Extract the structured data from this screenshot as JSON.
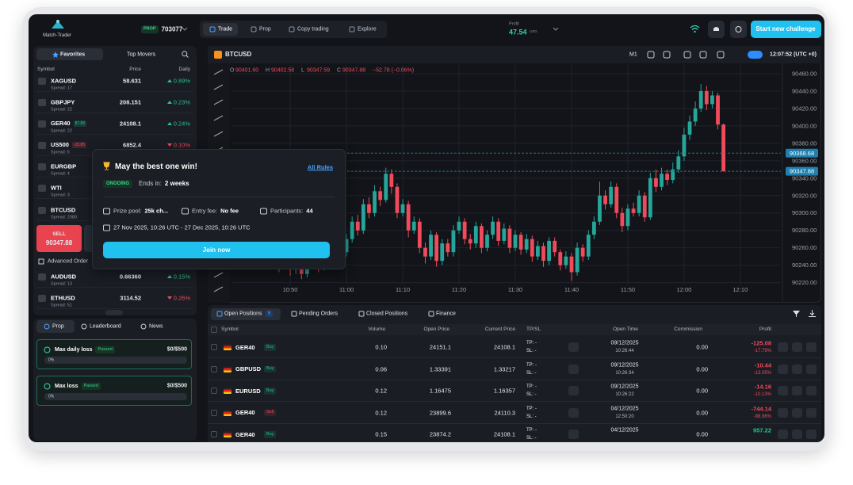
{
  "header": {
    "logo": "Match-Trader",
    "account_badge": "PROP",
    "account_id": "703077",
    "nav": [
      "Trade",
      "Prop",
      "Copy trading",
      "Explore"
    ],
    "profit_label": "Profit",
    "profit_value": "47.54",
    "profit_currency": "USD",
    "cta": "Start new challenge"
  },
  "watchlist": {
    "tabs": [
      "Favorites",
      "Top Movers"
    ],
    "columns": [
      "Symbol",
      "Price",
      "Daily"
    ],
    "rows": [
      {
        "symbol": "XAGUSD",
        "spread": "Spread: 17",
        "price": "58.631",
        "change": "0.89%",
        "trend": "up"
      },
      {
        "symbol": "GBPJPY",
        "spread": "Spread: 22",
        "price": "208.151",
        "change": "0.23%",
        "trend": "up"
      },
      {
        "symbol": "GER40",
        "badge": "87.89",
        "badge_trend": "up",
        "spread": "Spread: 22",
        "price": "24108.1",
        "change": "0.24%",
        "trend": "up"
      },
      {
        "symbol": "US500",
        "badge": "-15.85",
        "badge_trend": "down",
        "spread": "Spread: 6",
        "price": "6852.4",
        "change": "0.10%",
        "trend": "down"
      },
      {
        "symbol": "EURGBP",
        "spread": "Spread: 4"
      },
      {
        "symbol": "WTI",
        "spread": "Spread: 3"
      },
      {
        "symbol": "BTCUSD",
        "spread": "Spread: 2080"
      },
      {
        "symbol": "AUDUSD",
        "spread": "Spread: 13",
        "price": "0.66360",
        "change": "0.15%",
        "trend": "up"
      },
      {
        "symbol": "ETHUSD",
        "spread": "Spread: 51",
        "price": "3114.52",
        "change": "0.26%",
        "trend": "down"
      }
    ],
    "sell": {
      "label": "SELL",
      "price": "90347.88"
    },
    "advanced_order": "Advanced Order"
  },
  "prop_panel": {
    "tabs": [
      "Prop",
      "Leaderboard",
      "News"
    ],
    "cards": [
      {
        "title": "Max daily loss",
        "status": "Passed",
        "amount": "$0/$500",
        "progress": "0%"
      },
      {
        "title": "Max loss",
        "status": "Passed",
        "amount": "$0/$500",
        "progress": "0%"
      }
    ]
  },
  "popup": {
    "title": "May the best one win!",
    "link": "All Rules",
    "status": "ONGOING",
    "ends_label": "Ends in:",
    "ends_value": "2 weeks",
    "prize_label": "Prize pool:",
    "prize_value": "25k ch...",
    "fee_label": "Entry fee:",
    "fee_value": "No fee",
    "participants_label": "Participants:",
    "participants_value": "44",
    "dates": "27 Nov 2025, 10:26 UTC - 27 Dec 2025, 10:26 UTC",
    "button": "Join now"
  },
  "chart_data": {
    "type": "candlestick",
    "symbol": "BTCUSD",
    "timeframe": "M1",
    "clock": "12:07:52 (UTC +0)",
    "ohlc_header": [
      {
        "key": "O",
        "value": "90401.60"
      },
      {
        "key": "H",
        "value": "90402.58"
      },
      {
        "key": "L",
        "value": "90347.59"
      },
      {
        "key": "C",
        "value": "90347.88"
      }
    ],
    "change": "−52.78 (−0.06%)",
    "up_color": "#26a69a",
    "down_color": "#ef4b5b",
    "grid": true,
    "ylim": [
      90206,
      90470
    ],
    "yticks": [
      {
        "value": 90460,
        "label": "90460.00"
      },
      {
        "value": 90440,
        "label": "90440.00"
      },
      {
        "value": 90420,
        "label": "90420.00"
      },
      {
        "value": 90400,
        "label": "90400.00"
      },
      {
        "value": 90380,
        "label": "90380.00"
      },
      {
        "value": 90360,
        "label": "90360.00"
      },
      {
        "value": 90340,
        "label": "90340.00"
      },
      {
        "value": 90320,
        "label": "90320.00"
      },
      {
        "value": 90300,
        "label": "90300.00"
      },
      {
        "value": 90280,
        "label": "90280.00"
      },
      {
        "value": 90260,
        "label": "90260.00"
      },
      {
        "value": 90240,
        "label": "90240.00"
      },
      {
        "value": 90220,
        "label": "90220.00"
      }
    ],
    "xlim": [
      -0.3,
      97.2
    ],
    "xticks": [
      {
        "value": 10,
        "label": "10:50"
      },
      {
        "value": 20,
        "label": "11:00"
      },
      {
        "value": 30,
        "label": "11:10"
      },
      {
        "value": 40,
        "label": "11:20"
      },
      {
        "value": 50,
        "label": "11:30"
      },
      {
        "value": 60,
        "label": "11:40"
      },
      {
        "value": 70,
        "label": "11:50"
      },
      {
        "value": 80,
        "label": "12:00"
      },
      {
        "value": 90,
        "label": "12:10"
      }
    ],
    "price_lines": [
      {
        "value": 90368.68,
        "color": "#2a6d8c"
      },
      {
        "value": 90347.88,
        "color": "#2a6d8c"
      }
    ],
    "open": [
      90310,
      90300,
      90285,
      90310,
      90290,
      90270,
      90280,
      90255,
      90262,
      90240,
      90250,
      90235,
      90248,
      90230,
      90245,
      90260,
      90238,
      90250,
      90265,
      90245,
      90255,
      90270,
      90290,
      90280,
      90310,
      90300,
      90325,
      90315,
      90345,
      90330,
      90300,
      90310,
      90280,
      90290,
      90260,
      90250,
      90275,
      90245,
      90265,
      90255,
      90280,
      90290,
      90270,
      90265,
      90285,
      90260,
      90275,
      90290,
      90268,
      90282,
      90260,
      90275,
      90258,
      90270,
      90250,
      90262,
      90245,
      90268,
      90255,
      90240,
      90250,
      90232,
      90260,
      90250,
      90275,
      90290,
      90320,
      90310,
      90330,
      90300,
      90285,
      90305,
      90300,
      90320,
      90295,
      90340,
      90330,
      90345,
      90338,
      90350,
      90365,
      90390,
      90405,
      90420,
      90440,
      90425,
      90435,
      90401.6
    ],
    "high": [
      90318,
      90306,
      90316,
      90315,
      90296,
      90288,
      90284,
      90270,
      90266,
      90258,
      90255,
      90252,
      90254,
      90250,
      90266,
      90264,
      90256,
      90272,
      90268,
      90262,
      90276,
      90296,
      90298,
      90316,
      90318,
      90332,
      90330,
      90352,
      90350,
      90334,
      90316,
      90314,
      90296,
      90294,
      90266,
      90280,
      90278,
      90270,
      90270,
      90286,
      90296,
      90294,
      90276,
      90290,
      90288,
      90280,
      90296,
      90294,
      90288,
      90286,
      90280,
      90278,
      90276,
      90274,
      90268,
      90266,
      90272,
      90272,
      90258,
      90256,
      90254,
      90266,
      90264,
      90280,
      90296,
      90336,
      90326,
      90336,
      90334,
      90306,
      90310,
      90312,
      90326,
      90324,
      90346,
      90350,
      90352,
      90350,
      90358,
      90372,
      90398,
      90412,
      90428,
      90448,
      90446,
      90440,
      90438,
      90402.58
    ],
    "low": [
      90292,
      90278,
      90280,
      90284,
      90262,
      90266,
      90248,
      90250,
      90232,
      90236,
      90228,
      90230,
      90224,
      90226,
      90240,
      90232,
      90234,
      90246,
      90240,
      90242,
      90250,
      90266,
      90274,
      90276,
      90294,
      90296,
      90308,
      90312,
      90322,
      90294,
      90296,
      90272,
      90276,
      90254,
      90242,
      90246,
      90238,
      90240,
      90250,
      90250,
      90276,
      90264,
      90258,
      90260,
      90254,
      90256,
      90270,
      90262,
      90264,
      90254,
      90256,
      90252,
      90254,
      90244,
      90246,
      90238,
      90240,
      90250,
      90234,
      90236,
      90222,
      90228,
      90244,
      90246,
      90270,
      90286,
      90304,
      90306,
      90294,
      90278,
      90280,
      90296,
      90296,
      90290,
      90292,
      90324,
      90326,
      90332,
      90334,
      90346,
      90360,
      90384,
      90400,
      90416,
      90418,
      90420,
      90396,
      90347.59
    ],
    "close": [
      90300,
      90285,
      90310,
      90290,
      90270,
      90280,
      90255,
      90262,
      90240,
      90250,
      90235,
      90248,
      90230,
      90245,
      90260,
      90238,
      90250,
      90265,
      90245,
      90255,
      90270,
      90290,
      90280,
      90310,
      90300,
      90325,
      90315,
      90345,
      90330,
      90300,
      90310,
      90280,
      90290,
      90260,
      90250,
      90275,
      90245,
      90265,
      90255,
      90280,
      90290,
      90270,
      90265,
      90285,
      90260,
      90275,
      90290,
      90268,
      90282,
      90260,
      90275,
      90258,
      90270,
      90250,
      90262,
      90245,
      90268,
      90255,
      90240,
      90250,
      90232,
      90260,
      90250,
      90275,
      90290,
      90320,
      90310,
      90330,
      90300,
      90285,
      90305,
      90300,
      90320,
      90295,
      90340,
      90330,
      90345,
      90338,
      90350,
      90365,
      90390,
      90405,
      90420,
      90440,
      90425,
      90435,
      90401.6,
      90347.88
    ]
  },
  "positions": {
    "tabs": [
      "Open Positions",
      "Pending Orders",
      "Closed Positions",
      "Finance"
    ],
    "open_count": "5",
    "columns": [
      "Symbol",
      "Volume",
      "Open Price",
      "Current Price",
      "TP/SL",
      "Open Time",
      "Commission",
      "Profit"
    ],
    "rows": [
      {
        "symbol": "GER40",
        "side": "Buy",
        "direction": "long",
        "volume": "0.10",
        "open_price": "24151.1",
        "current_price": "24108.1",
        "tp": "TP: -",
        "sl": "SL: -",
        "date": "09/12/2025",
        "time": "10:26:44",
        "commission": "0.00",
        "profit": "-125.08",
        "profit_pct": "-17.79%",
        "trend": "down"
      },
      {
        "symbol": "GBPUSD",
        "side": "Buy",
        "direction": "long",
        "volume": "0.06",
        "open_price": "1.33391",
        "current_price": "1.33217",
        "tp": "TP: -",
        "sl": "SL: -",
        "date": "09/12/2025",
        "time": "10:26:34",
        "commission": "0.00",
        "profit": "-10.44",
        "profit_pct": "-13.05%",
        "trend": "down"
      },
      {
        "symbol": "EURUSD",
        "side": "Buy",
        "direction": "long",
        "volume": "0.12",
        "open_price": "1.16475",
        "current_price": "1.16357",
        "tp": "TP: -",
        "sl": "SL: -",
        "date": "09/12/2025",
        "time": "10:26:22",
        "commission": "0.00",
        "profit": "-14.16",
        "profit_pct": "-10.13%",
        "trend": "down"
      },
      {
        "symbol": "GER40",
        "side": "Sell",
        "direction": "short",
        "volume": "0.12",
        "open_price": "23899.6",
        "current_price": "24110.3",
        "tp": "TP: -",
        "sl": "SL: -",
        "date": "04/12/2025",
        "time": "12:50:20",
        "commission": "0.00",
        "profit": "-744.14",
        "profit_pct": "-88.96%",
        "trend": "down"
      },
      {
        "symbol": "GER40",
        "side": "Buy",
        "direction": "long",
        "volume": "0.15",
        "open_price": "23874.2",
        "current_price": "24108.1",
        "tp": "TP: -",
        "sl": "SL: -",
        "date": "04/12/2025",
        "commission": "0.00",
        "profit": "957.22",
        "trend": "up"
      }
    ]
  }
}
